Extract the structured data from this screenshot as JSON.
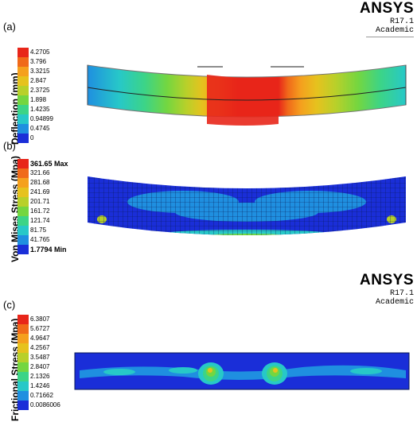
{
  "panel_a": {
    "label": "(a)",
    "brand": {
      "name": "ANSYS",
      "version": "R17.1",
      "edition": "Academic"
    },
    "legend_title": "Deflection (mm)",
    "legend_values": [
      "4.2705",
      "3.796",
      "3.3215",
      "2.847",
      "2.3725",
      "1.898",
      "1.4235",
      "0.94899",
      "0.4745",
      "0"
    ],
    "legend_colors": [
      "#e8261a",
      "#f06a1a",
      "#f5a01e",
      "#e6c21e",
      "#b8d02a",
      "#74d640",
      "#3cd487",
      "#27c8c8",
      "#1f8fe0",
      "#1a2ed8"
    ]
  },
  "panel_b": {
    "label": "(b)",
    "legend_title": "Von Mises Stress (Mpa)",
    "legend_values": [
      "361.65 Max",
      "321.66",
      "281.68",
      "241.69",
      "201.71",
      "161.72",
      "121.74",
      "81.75",
      "41.765",
      "1.7794 Min"
    ],
    "legend_colors": [
      "#e8261a",
      "#f06a1a",
      "#f5a01e",
      "#e6c21e",
      "#b8d02a",
      "#74d640",
      "#3cd487",
      "#27c8c8",
      "#1f8fe0",
      "#1a2ed8"
    ]
  },
  "panel_c": {
    "label": "(c)",
    "brand": {
      "name": "ANSYS",
      "version": "R17.1",
      "edition": "Academic"
    },
    "legend_title": "Frictional Stress (Mpa)",
    "legend_values": [
      "6.3807",
      "5.6727",
      "4.9647",
      "4.2567",
      "3.5487",
      "2.8407",
      "2.1326",
      "1.4246",
      "0.71662",
      "0.0086006"
    ],
    "legend_colors": [
      "#e8261a",
      "#f06a1a",
      "#f5a01e",
      "#e6c21e",
      "#b8d02a",
      "#74d640",
      "#3cd487",
      "#27c8c8",
      "#1f8fe0",
      "#1a2ed8"
    ]
  }
}
